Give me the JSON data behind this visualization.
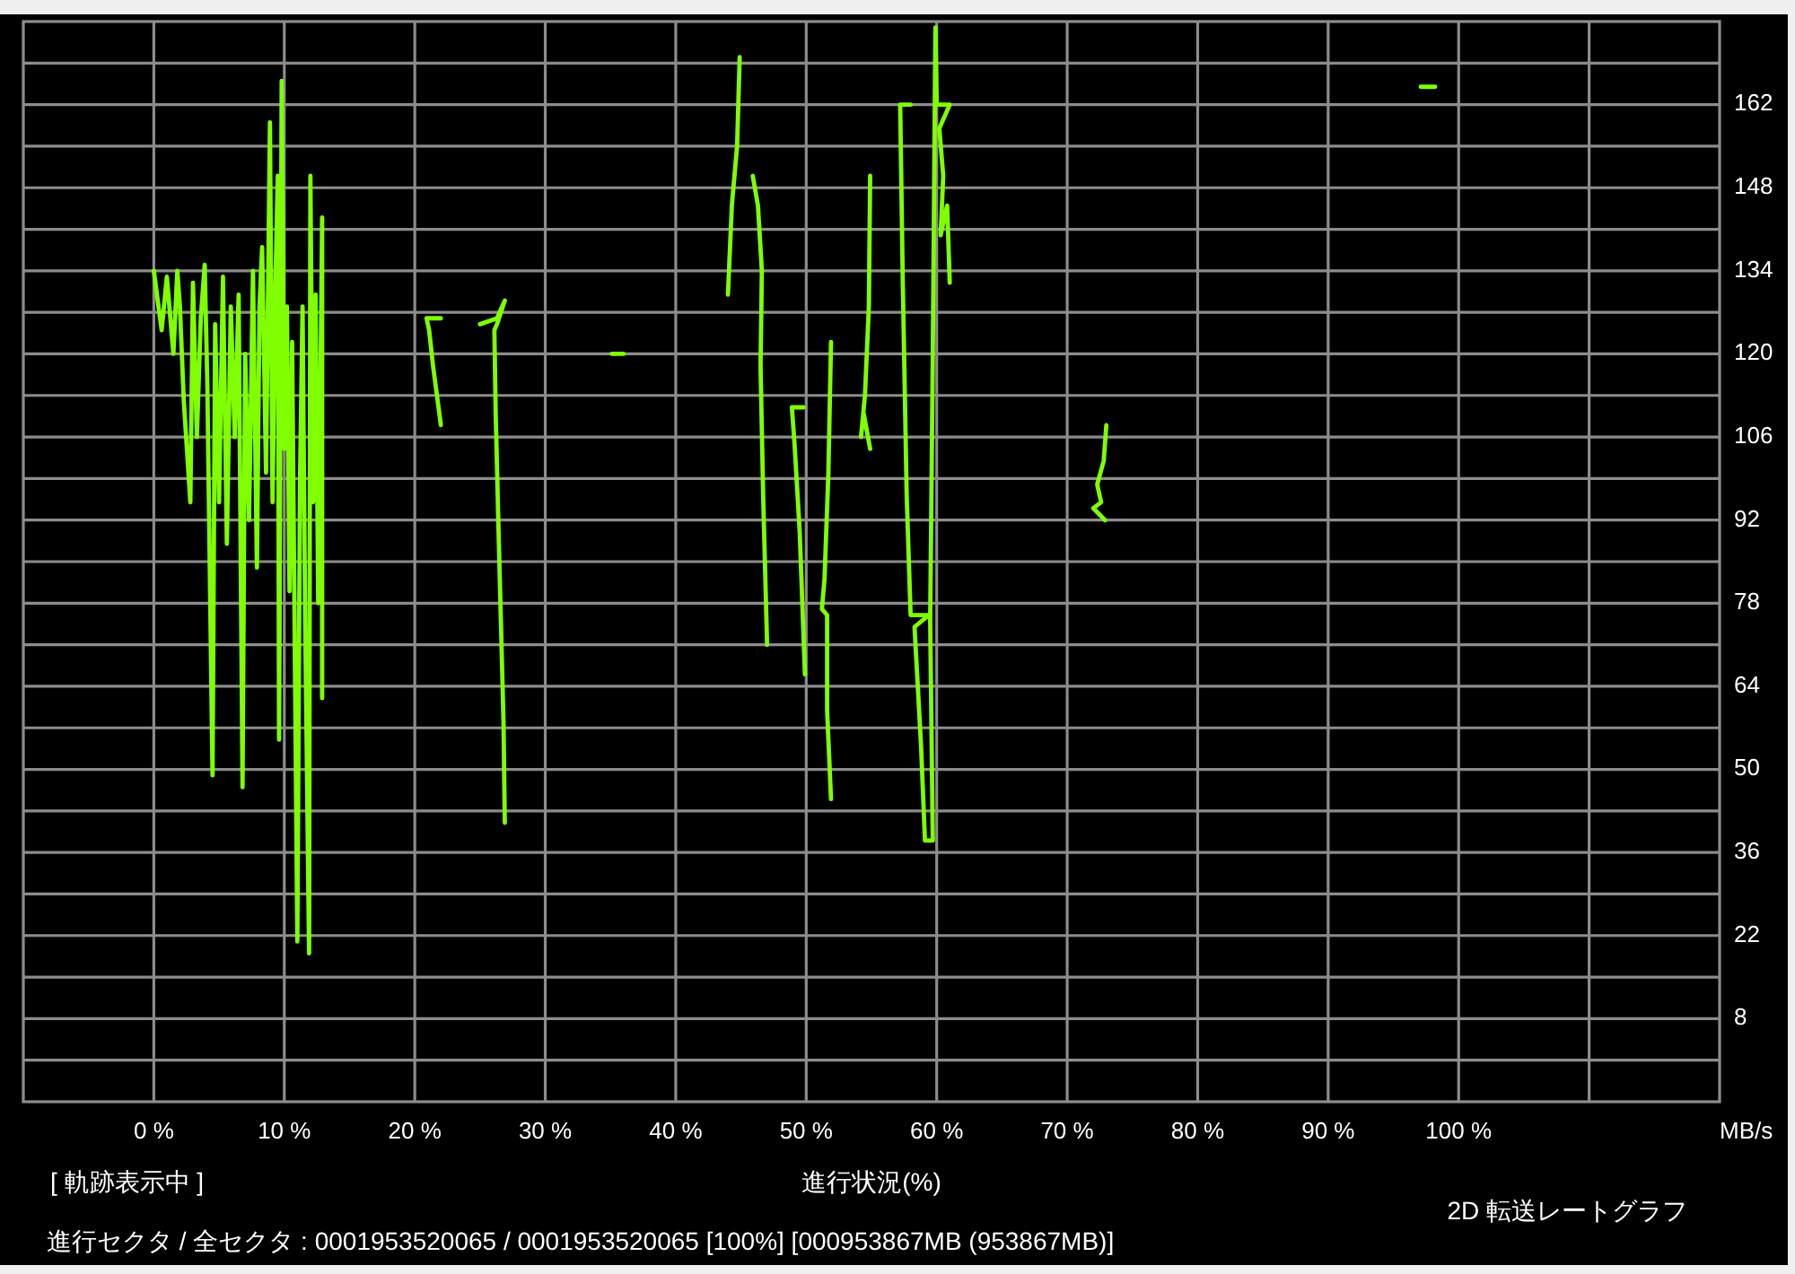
{
  "chart_data": {
    "type": "line",
    "title": "2D 転送レートグラフ",
    "xlabel": "進行状況(%)",
    "ylabel": "MB/s",
    "annotations": [
      "[ 軌跡表示中 ]",
      "進行セクタ / 全セクタ : 0001953520065 / 0001953520065 [100%] [000953867MB (953867MB)]"
    ],
    "xlim": [
      -10,
      120
    ],
    "ylim": [
      -6,
      176
    ],
    "xticks": [
      {
        "value": 0,
        "label": "0 %"
      },
      {
        "value": 10,
        "label": "10 %"
      },
      {
        "value": 20,
        "label": "20 %"
      },
      {
        "value": 30,
        "label": "30 %"
      },
      {
        "value": 40,
        "label": "40 %"
      },
      {
        "value": 50,
        "label": "50 %"
      },
      {
        "value": 60,
        "label": "60 %"
      },
      {
        "value": 70,
        "label": "70 %"
      },
      {
        "value": 80,
        "label": "80 %"
      },
      {
        "value": 90,
        "label": "90 %"
      },
      {
        "value": 100,
        "label": "100 %"
      },
      {
        "value": 110,
        "label": null
      }
    ],
    "yticks": [
      {
        "value": 1,
        "label": null
      },
      8,
      {
        "value": 15,
        "label": null
      },
      22,
      {
        "value": 29,
        "label": null
      },
      36,
      {
        "value": 43,
        "label": null
      },
      50,
      {
        "value": 57,
        "label": null
      },
      64,
      {
        "value": 71,
        "label": null
      },
      78,
      {
        "value": 85,
        "label": null
      },
      92,
      {
        "value": 99,
        "label": null
      },
      106,
      {
        "value": 113,
        "label": null
      },
      120,
      {
        "value": 127,
        "label": null
      },
      134,
      {
        "value": 141,
        "label": null
      },
      148,
      {
        "value": 155,
        "label": null
      },
      162,
      {
        "value": 169,
        "label": null
      }
    ],
    "grid": true,
    "line_style": "solid",
    "series": [
      {
        "color": "#7fff00",
        "x": [
          0.0,
          0.6,
          1.0,
          1.5,
          1.8,
          2.0,
          2.3,
          2.8,
          3.0,
          3.3,
          3.6,
          3.9,
          4.1,
          4.5,
          4.7,
          5.0,
          5.3,
          5.6,
          5.9,
          6.2,
          6.5,
          6.8,
          7.0,
          7.3,
          7.6,
          7.9,
          8.1,
          8.3,
          8.6,
          8.9,
          9.1,
          9.3,
          9.5,
          9.6,
          9.8,
          10.0,
          10.2,
          10.4,
          10.6,
          11.0,
          11.2,
          11.4,
          11.6,
          11.9,
          12.0,
          12.2,
          12.4,
          12.6,
          12.9,
          12.9
        ],
        "values": [
          134,
          124,
          133,
          120,
          134,
          128,
          112,
          95,
          132,
          106,
          126,
          135,
          115,
          49,
          125,
          95,
          133,
          88,
          128,
          106,
          130,
          47,
          120,
          92,
          134,
          84,
          128,
          138,
          100,
          159,
          95,
          130,
          150,
          55,
          166,
          104,
          128,
          80,
          122,
          21,
          98,
          128,
          75,
          19,
          150,
          95,
          130,
          78,
          143,
          62
        ]
      },
      {
        "color": "#7fff00",
        "x": [
          22.0,
          20.9,
          21.1,
          21.4,
          21.7,
          22.0
        ],
        "values": [
          126,
          126,
          124,
          118,
          113,
          108
        ]
      },
      {
        "color": "#7fff00",
        "x": [
          25.0,
          26.3,
          26.9,
          26.3,
          26.1,
          26.2,
          26.4,
          26.6,
          26.8,
          26.9
        ],
        "values": [
          125,
          126,
          129,
          125,
          124,
          110,
          92,
          75,
          58,
          41
        ]
      },
      {
        "color": "#7fff00",
        "x": [
          35.1,
          36.0
        ],
        "values": [
          120,
          120
        ]
      },
      {
        "color": "#7fff00",
        "x": [
          44.0,
          44.3,
          44.7,
          44.9
        ],
        "values": [
          130,
          145,
          155,
          170
        ]
      },
      {
        "color": "#7fff00",
        "x": [
          45.9,
          46.3,
          46.6,
          46.5,
          46.7,
          47.0
        ],
        "values": [
          150,
          145,
          134,
          118,
          96,
          71
        ]
      },
      {
        "color": "#7fff00",
        "x": [
          49.8,
          48.9,
          49.1,
          49.5,
          49.9
        ],
        "values": [
          111,
          111,
          105,
          90,
          66
        ]
      },
      {
        "color": "#7fff00",
        "x": [
          51.9,
          51.7,
          51.4,
          51.2,
          51.6,
          51.6,
          51.9
        ],
        "values": [
          122,
          100,
          82,
          77,
          76,
          60,
          45
        ]
      },
      {
        "color": "#7fff00",
        "x": [
          54.9,
          54.8,
          54.5,
          54.2,
          54.4,
          54.9
        ],
        "values": [
          150,
          128,
          113,
          106,
          110,
          104
        ]
      },
      {
        "color": "#7fff00",
        "x": [
          58.0,
          57.2,
          57.4,
          57.7,
          58.0,
          59.4,
          58.3,
          58.8,
          59.1,
          59.7,
          59.5,
          59.7,
          59.9,
          60.0,
          61.0,
          60.2,
          60.5,
          60.3,
          60.8,
          61.0
        ],
        "values": [
          162,
          162,
          132,
          96,
          76,
          76,
          74,
          54,
          38,
          38,
          75,
          120,
          175,
          162,
          162,
          158,
          150,
          140,
          145,
          132
        ]
      },
      {
        "color": "#7fff00",
        "x": [
          73.0,
          72.8,
          72.3,
          72.6,
          72.0,
          72.9
        ],
        "values": [
          108,
          102,
          98,
          95,
          94,
          92
        ]
      },
      {
        "color": "#7fff00",
        "x": [
          97.1,
          98.2
        ],
        "values": [
          165,
          165
        ]
      }
    ]
  }
}
